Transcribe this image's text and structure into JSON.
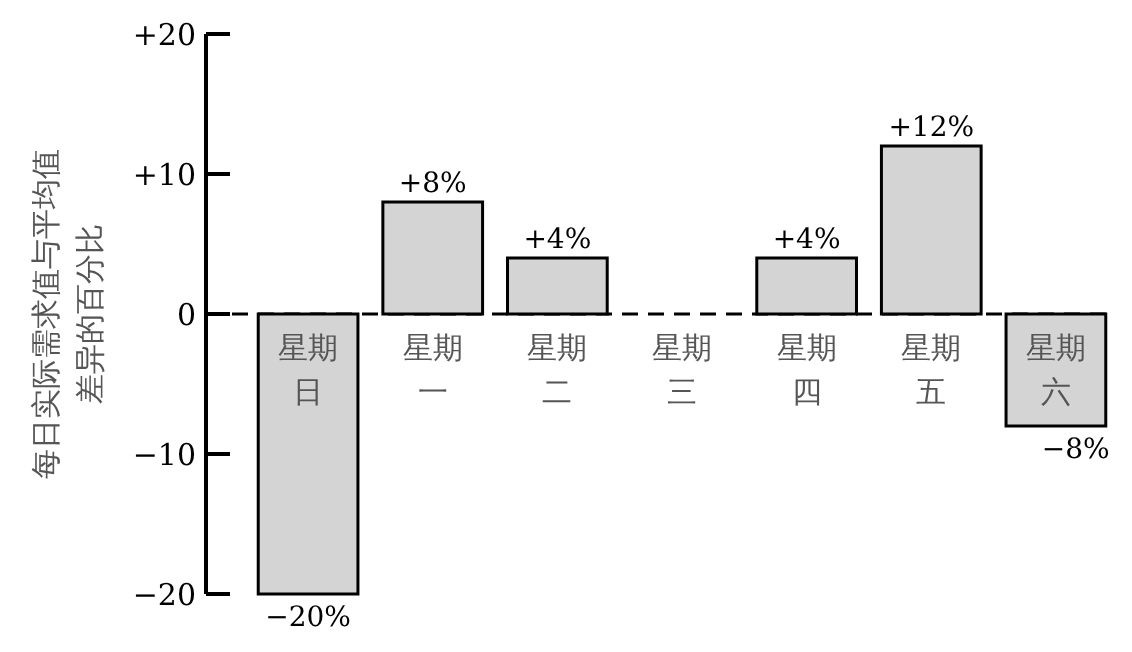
{
  "chart_data": {
    "type": "bar",
    "ylabel": "每日实际需求值与平均值差异的百分比",
    "categories": [
      "星期日",
      "星期一",
      "星期二",
      "星期三",
      "星期四",
      "星期五",
      "星期六"
    ],
    "values": [
      -20,
      8,
      4,
      0,
      4,
      12,
      -8
    ],
    "value_labels": [
      "−20%",
      "+8%",
      "+4%",
      null,
      "+4%",
      "+12%",
      "−8%"
    ],
    "color": "#d4d4d4",
    "ylim": [
      -20,
      20
    ],
    "yticks": [
      {
        "value": 20,
        "label": "+20"
      },
      {
        "value": 10,
        "label": "+10"
      },
      0,
      {
        "value": -10,
        "label": "−10"
      },
      {
        "value": -20,
        "label": "−20"
      }
    ],
    "ref_lines": [
      {
        "axis": "y",
        "value": 0,
        "line_style": "dashed"
      }
    ],
    "grid": false
  }
}
